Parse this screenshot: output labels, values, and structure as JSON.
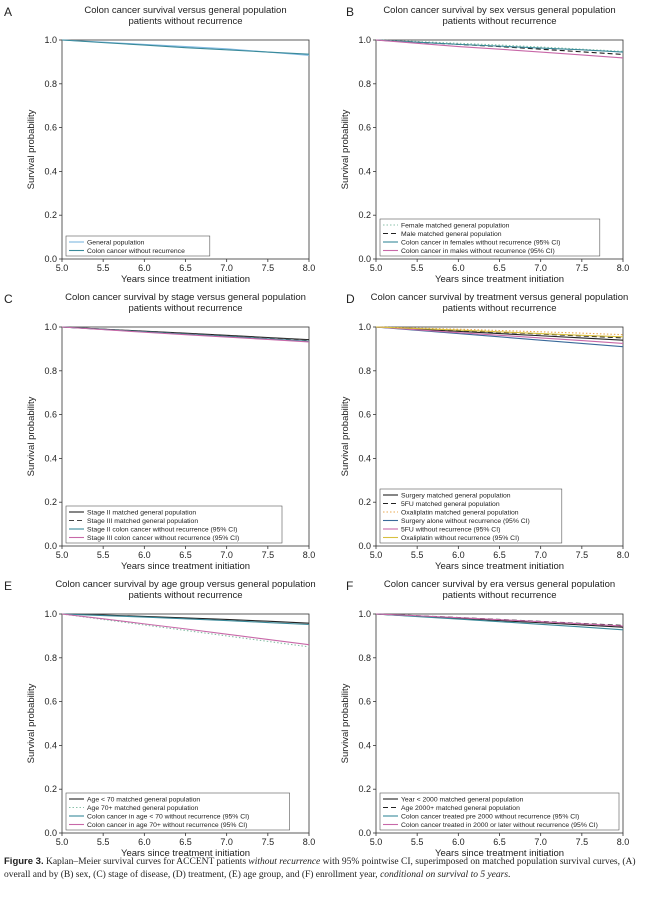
{
  "chart_data": [
    {
      "type": "line",
      "letter": "A",
      "title": [
        "Colon cancer survival versus general population",
        "patients without recurrence"
      ],
      "xlabel": "Years since treatment initiation",
      "ylabel": "Survival probability",
      "xlim": [
        5.0,
        8.0
      ],
      "ylim": [
        0.0,
        1.0
      ],
      "x_ticks": [
        "5.0",
        "5.5",
        "6.0",
        "6.5",
        "7.0",
        "7.5",
        "8.0"
      ],
      "y_ticks": [
        "0.0",
        "0.2",
        "0.4",
        "0.6",
        "0.8",
        "1.0"
      ],
      "grid": false,
      "legend_position": "bottom-left",
      "x": [
        5.0,
        5.5,
        6.0,
        6.5,
        7.0,
        7.5,
        8.0
      ],
      "series": [
        {
          "name": "General population",
          "color": "#7fb8e0",
          "dash": "solid",
          "values": [
            1.0,
            0.99,
            0.98,
            0.97,
            0.96,
            0.945,
            0.93
          ]
        },
        {
          "name": "Colon cancer without recurrence",
          "color": "#3a8a9a",
          "dash": "solid",
          "values": [
            1.0,
            0.988,
            0.977,
            0.965,
            0.955,
            0.945,
            0.935
          ]
        }
      ]
    },
    {
      "type": "line",
      "letter": "B",
      "title": [
        "Colon cancer survival by sex versus general population",
        "patients without recurrence"
      ],
      "xlabel": "Years since treatment initiation",
      "ylabel": "Survival probability",
      "xlim": [
        5.0,
        8.0
      ],
      "ylim": [
        0.0,
        1.0
      ],
      "x_ticks": [
        "5.0",
        "5.5",
        "6.0",
        "6.5",
        "7.0",
        "7.5",
        "8.0"
      ],
      "y_ticks": [
        "0.0",
        "0.2",
        "0.4",
        "0.6",
        "0.8",
        "1.0"
      ],
      "grid": false,
      "legend_position": "bottom-left",
      "x": [
        5.0,
        5.5,
        6.0,
        6.5,
        7.0,
        7.5,
        8.0
      ],
      "series": [
        {
          "name": "Female matched general population",
          "color": "#88c0a8",
          "dash": "dotted",
          "values": [
            1.0,
            0.993,
            0.985,
            0.977,
            0.968,
            0.958,
            0.948
          ]
        },
        {
          "name": "Male matched general population",
          "color": "#222222",
          "dash": "dashed",
          "values": [
            1.0,
            0.99,
            0.98,
            0.97,
            0.958,
            0.946,
            0.934
          ]
        },
        {
          "name": "Colon cancer in females without recurrence (95% CI)",
          "color": "#3a8a9a",
          "dash": "solid",
          "values": [
            1.0,
            0.99,
            0.98,
            0.972,
            0.963,
            0.955,
            0.945
          ]
        },
        {
          "name": "Colon cancer in males without recurrence (95% CI)",
          "color": "#c868a8",
          "dash": "solid",
          "values": [
            1.0,
            0.985,
            0.97,
            0.958,
            0.945,
            0.932,
            0.918
          ]
        }
      ]
    },
    {
      "type": "line",
      "letter": "C",
      "title": [
        "Colon cancer survival by stage versus general population",
        "patients without recurrence"
      ],
      "xlabel": "Years since treatment initiation",
      "ylabel": "Survival probability",
      "xlim": [
        5.0,
        8.0
      ],
      "ylim": [
        0.0,
        1.0
      ],
      "x_ticks": [
        "5.0",
        "5.5",
        "6.0",
        "6.5",
        "7.0",
        "7.5",
        "8.0"
      ],
      "y_ticks": [
        "0.0",
        "0.2",
        "0.4",
        "0.6",
        "0.8",
        "1.0"
      ],
      "grid": false,
      "legend_position": "bottom-left",
      "x": [
        5.0,
        5.5,
        6.0,
        6.5,
        7.0,
        7.5,
        8.0
      ],
      "series": [
        {
          "name": "Stage II matched general population",
          "color": "#222222",
          "dash": "solid",
          "values": [
            1.0,
            0.99,
            0.981,
            0.972,
            0.962,
            0.952,
            0.942
          ]
        },
        {
          "name": "Stage III matched general population",
          "color": "#444444",
          "dash": "dashed",
          "values": [
            1.0,
            0.99,
            0.98,
            0.97,
            0.96,
            0.95,
            0.94
          ]
        },
        {
          "name": "Stage II colon cancer without recurrence (95% CI)",
          "color": "#3a8a9a",
          "dash": "solid",
          "values": [
            1.0,
            0.989,
            0.978,
            0.967,
            0.957,
            0.946,
            0.935
          ]
        },
        {
          "name": "Stage III colon cancer without recurrence (95% CI)",
          "color": "#c868a8",
          "dash": "solid",
          "values": [
            1.0,
            0.988,
            0.976,
            0.965,
            0.954,
            0.943,
            0.932
          ]
        }
      ]
    },
    {
      "type": "line",
      "letter": "D",
      "title": [
        "Colon cancer survival by treatment versus general population",
        "patients without recurrence"
      ],
      "xlabel": "Years since treatment initiation",
      "ylabel": "Survival probability",
      "xlim": [
        5.0,
        8.0
      ],
      "ylim": [
        0.0,
        1.0
      ],
      "x_ticks": [
        "5.0",
        "5.5",
        "6.0",
        "6.5",
        "7.0",
        "7.5",
        "8.0"
      ],
      "y_ticks": [
        "0.0",
        "0.2",
        "0.4",
        "0.6",
        "0.8",
        "1.0"
      ],
      "grid": false,
      "legend_position": "bottom-left",
      "x": [
        5.0,
        5.5,
        6.0,
        6.5,
        7.0,
        7.5,
        8.0
      ],
      "series": [
        {
          "name": "Surgery matched general population",
          "color": "#222222",
          "dash": "solid",
          "values": [
            1.0,
            0.99,
            0.98,
            0.97,
            0.96,
            0.95,
            0.94
          ]
        },
        {
          "name": "5FU matched general population",
          "color": "#222222",
          "dash": "dashed",
          "values": [
            1.0,
            0.992,
            0.984,
            0.976,
            0.968,
            0.959,
            0.95
          ]
        },
        {
          "name": "Oxaliplatin matched general population",
          "color": "#e8a850",
          "dash": "dotted",
          "values": [
            1.0,
            0.995,
            0.99,
            0.984,
            0.978,
            0.972,
            0.965
          ]
        },
        {
          "name": "Surgery alone without recurrence (95% CI)",
          "color": "#3a6a9a",
          "dash": "solid",
          "values": [
            1.0,
            0.985,
            0.97,
            0.955,
            0.94,
            0.925,
            0.91
          ]
        },
        {
          "name": "5FU without recurrence (95% CI)",
          "color": "#c868a8",
          "dash": "solid",
          "values": [
            1.0,
            0.987,
            0.974,
            0.962,
            0.95,
            0.938,
            0.925
          ]
        },
        {
          "name": "Oxaliplatin without recurrence (95% CI)",
          "color": "#d8c040",
          "dash": "solid",
          "values": [
            1.0,
            0.993,
            0.986,
            0.978,
            0.97,
            0.962,
            0.955
          ]
        }
      ]
    },
    {
      "type": "line",
      "letter": "E",
      "title": [
        "Colon cancer survival by age group versus general population",
        "patients without recurrence"
      ],
      "xlabel": "Years since treatment initiation",
      "ylabel": "Survival probability",
      "xlim": [
        5.0,
        8.0
      ],
      "ylim": [
        0.0,
        1.0
      ],
      "x_ticks": [
        "5.0",
        "5.5",
        "6.0",
        "6.5",
        "7.0",
        "7.5",
        "8.0"
      ],
      "y_ticks": [
        "0.0",
        "0.2",
        "0.4",
        "0.6",
        "0.8",
        "1.0"
      ],
      "grid": false,
      "legend_position": "bottom-left",
      "x": [
        5.0,
        5.5,
        6.0,
        6.5,
        7.0,
        7.5,
        8.0
      ],
      "series": [
        {
          "name": "Age < 70 matched general population",
          "color": "#222222",
          "dash": "solid",
          "values": [
            1.0,
            0.995,
            0.989,
            0.982,
            0.975,
            0.967,
            0.958
          ]
        },
        {
          "name": "Age 70+ matched general population",
          "color": "#88c0a8",
          "dash": "dotted",
          "values": [
            1.0,
            0.975,
            0.95,
            0.925,
            0.9,
            0.875,
            0.85
          ]
        },
        {
          "name": "Colon cancer in age < 70 without recurrence (95% CI)",
          "color": "#3a8a9a",
          "dash": "solid",
          "values": [
            1.0,
            0.993,
            0.986,
            0.978,
            0.97,
            0.961,
            0.952
          ]
        },
        {
          "name": "Colon cancer in age 70+ without recurrence (95% CI)",
          "color": "#c868a8",
          "dash": "solid",
          "values": [
            1.0,
            0.978,
            0.955,
            0.932,
            0.908,
            0.884,
            0.86
          ]
        }
      ]
    },
    {
      "type": "line",
      "letter": "F",
      "title": [
        "Colon cancer survival by era versus general population",
        "patients without recurrence"
      ],
      "xlabel": "Years since treatment initiation",
      "ylabel": "Survival probability",
      "xlim": [
        5.0,
        8.0
      ],
      "ylim": [
        0.0,
        1.0
      ],
      "x_ticks": [
        "5.0",
        "5.5",
        "6.0",
        "6.5",
        "7.0",
        "7.5",
        "8.0"
      ],
      "y_ticks": [
        "0.0",
        "0.2",
        "0.4",
        "0.6",
        "0.8",
        "1.0"
      ],
      "grid": false,
      "legend_position": "bottom-left",
      "x": [
        5.0,
        5.5,
        6.0,
        6.5,
        7.0,
        7.5,
        8.0
      ],
      "series": [
        {
          "name": "Year < 2000 matched general population",
          "color": "#222222",
          "dash": "solid",
          "values": [
            1.0,
            0.99,
            0.98,
            0.97,
            0.96,
            0.95,
            0.94
          ]
        },
        {
          "name": "Age 2000+ matched general population",
          "color": "#222222",
          "dash": "dashed",
          "values": [
            1.0,
            0.992,
            0.984,
            0.975,
            0.966,
            0.957,
            0.948
          ]
        },
        {
          "name": "Colon cancer treated pre 2000 without recurrence (95% CI)",
          "color": "#3a8a9a",
          "dash": "solid",
          "values": [
            1.0,
            0.988,
            0.977,
            0.965,
            0.953,
            0.941,
            0.928
          ]
        },
        {
          "name": "Colon cancer treated in 2000 or later without recurrence (95% CI)",
          "color": "#c868a8",
          "dash": "solid",
          "values": [
            1.0,
            0.992,
            0.983,
            0.974,
            0.965,
            0.955,
            0.945
          ]
        }
      ]
    }
  ],
  "caption": {
    "label": "Figure 3.",
    "text_1": " Kaplan–Meier survival curves for ACCENT patients ",
    "italic_1": "without recurrence",
    "text_2": " with 95% pointwise CI, superimposed on matched population survival curves, (A) overall and by (B) sex, (C) stage of disease, (D) treatment, (E) age group, and (F) enrollment year, ",
    "italic_2": "conditional on survival to 5 years",
    "text_3": "."
  }
}
